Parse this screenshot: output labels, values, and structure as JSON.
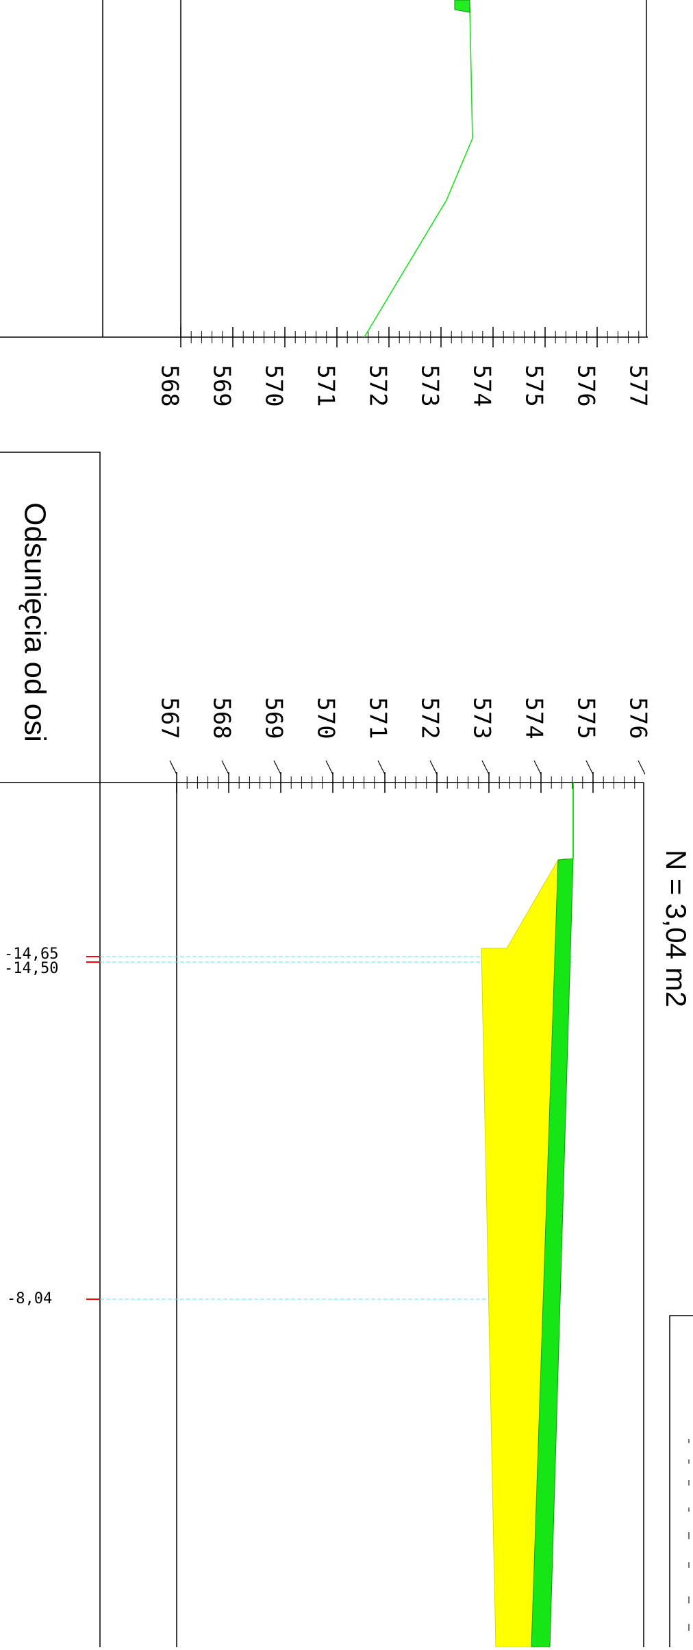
{
  "upper_section": {
    "elevation_labels": [
      "568",
      "569",
      "570",
      "571",
      "572",
      "573",
      "574",
      "575",
      "576",
      "577"
    ],
    "colors": {
      "terrain": "#1fe01f",
      "fill_green": "#22ee22"
    }
  },
  "side_panel": {
    "title": "Odsunięcia od osi"
  },
  "lower_section": {
    "elevation_labels": [
      "567",
      "568",
      "569",
      "570",
      "571",
      "572",
      "573",
      "574",
      "575",
      "576"
    ],
    "area_label": "N = 3,04 m2",
    "offset_labels": [
      "-14,65",
      "-14,50",
      "-8,04"
    ],
    "colors": {
      "cut_fill": "#ffff00",
      "topsoil": "#16e516",
      "guide": "#55e8f0",
      "marker": "#ff0000"
    }
  }
}
